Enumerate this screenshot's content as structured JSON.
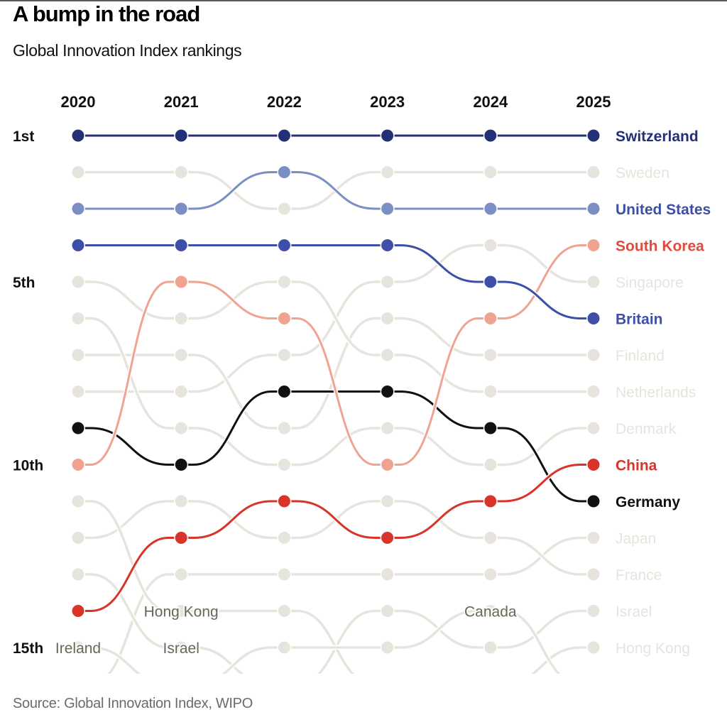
{
  "header": {
    "title": "A bump in the road",
    "subtitle": "Global Innovation Index rankings"
  },
  "footer": {
    "source": "Source: Global Innovation Index, WIPO"
  },
  "colors": {
    "switzerland": "#233076",
    "united_states": "#7b8fc4",
    "united_states_label": "#3c4ea6",
    "britain": "#3d4fa8",
    "south_korea": "#efa492",
    "south_korea_label": "#e04b3e",
    "china": "#d8342a",
    "germany": "#111111",
    "other": "#e6e4dc",
    "other_label": "#6a6657",
    "axis_text": "#111111"
  },
  "chart_data": {
    "type": "bump",
    "title": "A bump in the road",
    "subtitle": "Global Innovation Index rankings",
    "x": [
      "2020",
      "2021",
      "2022",
      "2023",
      "2024",
      "2025"
    ],
    "y_tick_labels": [
      {
        "rank": 1,
        "label": "1st"
      },
      {
        "rank": 5,
        "label": "5th"
      },
      {
        "rank": 10,
        "label": "10th"
      },
      {
        "rank": 15,
        "label": "15th"
      }
    ],
    "ylim": [
      1,
      15
    ],
    "y_inverted": true,
    "series": [
      {
        "name": "Switzerland",
        "ranks": [
          1,
          1,
          1,
          1,
          1,
          1
        ],
        "highlight": "switzerland"
      },
      {
        "name": "Sweden",
        "ranks": [
          2,
          2,
          3,
          2,
          2,
          2
        ],
        "highlight": null
      },
      {
        "name": "United States",
        "ranks": [
          3,
          3,
          2,
          3,
          3,
          3
        ],
        "highlight": "united_states"
      },
      {
        "name": "South Korea",
        "ranks": [
          10,
          5,
          6,
          10,
          6,
          4
        ],
        "highlight": "south_korea"
      },
      {
        "name": "Singapore",
        "ranks": [
          8,
          8,
          7,
          5,
          4,
          5
        ],
        "highlight": null
      },
      {
        "name": "Britain",
        "ranks": [
          4,
          4,
          4,
          4,
          5,
          6
        ],
        "highlight": "britain"
      },
      {
        "name": "Finland",
        "ranks": [
          7,
          7,
          9,
          6,
          7,
          7
        ],
        "highlight": null
      },
      {
        "name": "Netherlands",
        "ranks": [
          5,
          6,
          5,
          7,
          8,
          8
        ],
        "highlight": null
      },
      {
        "name": "Denmark",
        "ranks": [
          6,
          9,
          10,
          9,
          10,
          9
        ],
        "highlight": null
      },
      {
        "name": "China",
        "ranks": [
          14,
          12,
          11,
          12,
          11,
          10
        ],
        "highlight": "china"
      },
      {
        "name": "Germany",
        "ranks": [
          9,
          10,
          8,
          8,
          9,
          11
        ],
        "highlight": "germany"
      },
      {
        "name": "Japan",
        "ranks": [
          16,
          13,
          13,
          13,
          13,
          12
        ],
        "highlight": null
      },
      {
        "name": "France",
        "ranks": [
          12,
          11,
          12,
          11,
          12,
          13
        ],
        "highlight": null
      },
      {
        "name": "Israel",
        "ranks": [
          13,
          15,
          16,
          14,
          15,
          14
        ],
        "highlight": null
      },
      {
        "name": "Hong Kong",
        "ranks": [
          11,
          14,
          14,
          16,
          16,
          15
        ],
        "highlight": null
      },
      {
        "name": "Ireland",
        "ranks": [
          15,
          16,
          null,
          null,
          null,
          null
        ],
        "highlight": null
      },
      {
        "name": "Canada",
        "ranks": [
          null,
          16,
          15,
          15,
          14,
          16
        ],
        "highlight": null
      }
    ],
    "end_labels": [
      {
        "name": "Switzerland",
        "rank": 1,
        "style": "switzerland",
        "bold": true
      },
      {
        "name": "Sweden",
        "rank": 2,
        "style": "other",
        "bold": false
      },
      {
        "name": "United States",
        "rank": 3,
        "style": "united_states_label",
        "bold": true
      },
      {
        "name": "South Korea",
        "rank": 4,
        "style": "south_korea_label",
        "bold": true
      },
      {
        "name": "Singapore",
        "rank": 5,
        "style": "other",
        "bold": false
      },
      {
        "name": "Britain",
        "rank": 6,
        "style": "britain",
        "bold": true
      },
      {
        "name": "Finland",
        "rank": 7,
        "style": "other",
        "bold": false
      },
      {
        "name": "Netherlands",
        "rank": 8,
        "style": "other",
        "bold": false
      },
      {
        "name": "Denmark",
        "rank": 9,
        "style": "other",
        "bold": false
      },
      {
        "name": "China",
        "rank": 10,
        "style": "china",
        "bold": true
      },
      {
        "name": "Germany",
        "rank": 11,
        "style": "germany",
        "bold": true
      },
      {
        "name": "Japan",
        "rank": 12,
        "style": "other",
        "bold": false
      },
      {
        "name": "France",
        "rank": 13,
        "style": "other",
        "bold": false
      },
      {
        "name": "Israel",
        "rank": 14,
        "style": "other",
        "bold": false
      },
      {
        "name": "Hong Kong",
        "rank": 15,
        "style": "other",
        "bold": false
      }
    ],
    "inline_annotations": [
      {
        "text": "Ireland",
        "year_index": 0,
        "rank": 15
      },
      {
        "text": "Hong Kong",
        "year_index": 1,
        "rank": 14
      },
      {
        "text": "Israel",
        "year_index": 1,
        "rank": 15
      },
      {
        "text": "Canada",
        "year_index": 4,
        "rank": 14
      }
    ]
  }
}
